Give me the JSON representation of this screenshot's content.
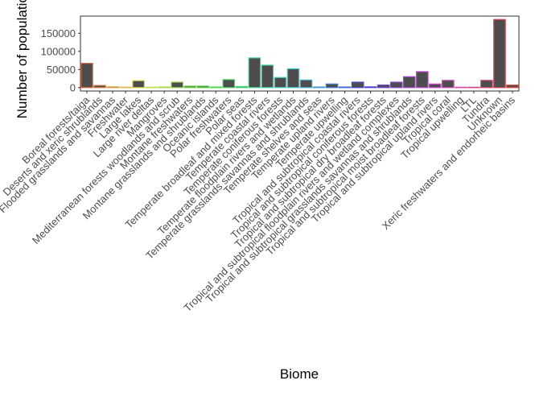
{
  "chart_data": {
    "type": "bar",
    "x_label": "Biome",
    "y_label": "Number of population",
    "categories": [
      "Boreal forests/taiga",
      "Deserts and xeric shrublands",
      "Flooded grasslands and savannas",
      "Freshwater",
      "Large lakes",
      "Large river deltas",
      "Mangroves",
      "Mediterranean forests woodlands and scrub",
      "Montane freshwaters",
      "Montane grasslands and shrublands",
      "Oceanic islands",
      "Polar freshwaters",
      "Polar seas",
      "Temperate broadleaf and mixed forests",
      "Temperate coastal rivers",
      "Temperate coniferous forests",
      "Temperate floodplain rivers and wetlands",
      "Temperate grasslands savannas and shrublands",
      "Temperate shelves and seas",
      "Temperate upland rivers",
      "Temperate upwelling",
      "Tropical and subtropical coastal rivers",
      "Tropical and subtropical coniferous forests",
      "Tropical and subtropical dry broadleaf forests",
      "Tropical and subtropical floodplain rivers and wetland complexes",
      "Tropical and subtropical grasslands savannas and shrublands",
      "Tropical and subtropical moist broadleaf forests",
      "Tropical and subtropical upland rivers",
      "Tropical coral",
      "Tropical upwelling",
      "LTL",
      "Tundra",
      "Unknown",
      "Xeric freshwaters and endorheic basins"
    ],
    "values": [
      67000,
      6000,
      2000,
      1000,
      19000,
      1000,
      1500,
      15000,
      4000,
      4000,
      1500,
      22000,
      3000,
      82000,
      62000,
      28000,
      52000,
      21000,
      1500,
      10000,
      1500,
      15000,
      2000,
      7000,
      15000,
      30000,
      44000,
      10000,
      20000,
      1000,
      1000,
      20000,
      188000,
      7000
    ],
    "fill": "#4d4d4d",
    "ylim": [
      -9400,
      197400
    ],
    "yticks": [
      0,
      50000,
      100000,
      150000
    ],
    "grid": false
  }
}
